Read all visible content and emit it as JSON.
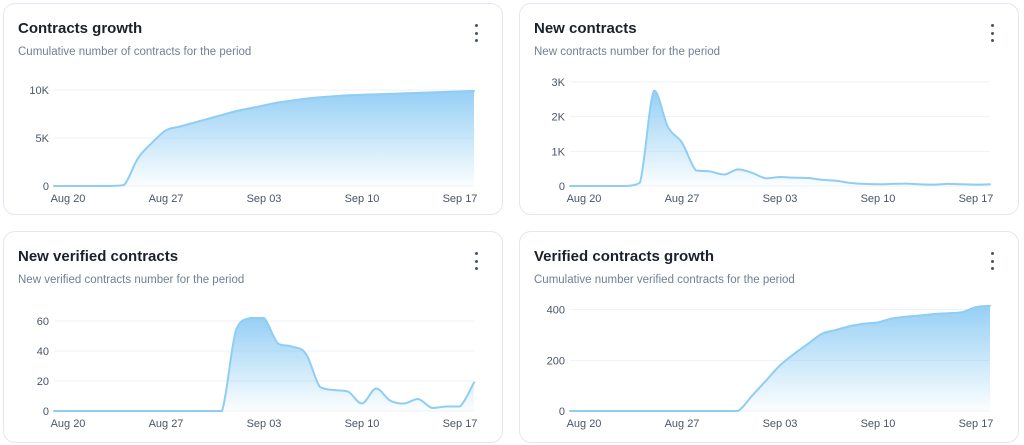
{
  "colors": {
    "line": "#90cdf4",
    "area_top": "#90cdf4",
    "grid": "#edf2f7"
  },
  "cards": [
    {
      "title": "Contracts growth",
      "subtitle": "Cumulative number of contracts for the period",
      "menu_icon": "more-vertical-icon",
      "chart_data": {
        "type": "area",
        "title": "Contracts growth",
        "xlabel": "",
        "ylabel": "",
        "x": [
          "2023-08-19",
          "2023-08-20",
          "2023-08-21",
          "2023-08-22",
          "2023-08-23",
          "2023-08-24",
          "2023-08-25",
          "2023-08-26",
          "2023-08-27",
          "2023-08-28",
          "2023-08-29",
          "2023-08-30",
          "2023-08-31",
          "2023-09-01",
          "2023-09-02",
          "2023-09-03",
          "2023-09-04",
          "2023-09-05",
          "2023-09-06",
          "2023-09-07",
          "2023-09-08",
          "2023-09-09",
          "2023-09-10",
          "2023-09-11",
          "2023-09-12",
          "2023-09-13",
          "2023-09-14",
          "2023-09-15",
          "2023-09-16",
          "2023-09-17",
          "2023-09-18"
        ],
        "values": [
          0,
          0,
          0,
          0,
          0,
          100,
          2900,
          4500,
          5800,
          6200,
          6600,
          7000,
          7400,
          7800,
          8100,
          8400,
          8700,
          8900,
          9100,
          9250,
          9350,
          9450,
          9500,
          9550,
          9600,
          9650,
          9700,
          9750,
          9800,
          9850,
          9900
        ],
        "ylim": [
          0,
          10000
        ],
        "y_ticks": [
          0,
          5000,
          10000
        ],
        "y_tick_labels": [
          "0",
          "5K",
          "10K"
        ],
        "x_ticks": [
          "2023-08-20",
          "2023-08-27",
          "2023-09-03",
          "2023-09-10",
          "2023-09-17"
        ],
        "x_tick_labels": [
          "Aug 20",
          "Aug 27",
          "Sep 03",
          "Sep 10",
          "Sep 17"
        ],
        "grid": true,
        "legend": "none"
      }
    },
    {
      "title": "New contracts",
      "subtitle": "New contracts number for the period",
      "menu_icon": "more-vertical-icon",
      "chart_data": {
        "type": "area",
        "title": "New contracts",
        "xlabel": "",
        "ylabel": "",
        "x": [
          "2023-08-19",
          "2023-08-20",
          "2023-08-21",
          "2023-08-22",
          "2023-08-23",
          "2023-08-24",
          "2023-08-25",
          "2023-08-26",
          "2023-08-27",
          "2023-08-28",
          "2023-08-29",
          "2023-08-30",
          "2023-08-31",
          "2023-09-01",
          "2023-09-02",
          "2023-09-03",
          "2023-09-04",
          "2023-09-05",
          "2023-09-06",
          "2023-09-07",
          "2023-09-08",
          "2023-09-09",
          "2023-09-10",
          "2023-09-11",
          "2023-09-12",
          "2023-09-13",
          "2023-09-14",
          "2023-09-15",
          "2023-09-16",
          "2023-09-17",
          "2023-09-18"
        ],
        "values": [
          0,
          0,
          0,
          0,
          0,
          100,
          2750,
          1700,
          1250,
          450,
          420,
          330,
          480,
          380,
          220,
          260,
          240,
          230,
          180,
          150,
          90,
          60,
          50,
          60,
          70,
          50,
          40,
          60,
          50,
          40,
          50
        ],
        "ylim": [
          0,
          3000
        ],
        "y_ticks": [
          0,
          1000,
          2000,
          3000
        ],
        "y_tick_labels": [
          "0",
          "1K",
          "2K",
          "3K"
        ],
        "x_ticks": [
          "2023-08-20",
          "2023-08-27",
          "2023-09-03",
          "2023-09-10",
          "2023-09-17"
        ],
        "x_tick_labels": [
          "Aug 20",
          "Aug 27",
          "Sep 03",
          "Sep 10",
          "Sep 17"
        ],
        "grid": true,
        "legend": "none"
      }
    },
    {
      "title": "New verified contracts",
      "subtitle": "New verified contracts number for the period",
      "menu_icon": "more-vertical-icon",
      "chart_data": {
        "type": "area",
        "title": "New verified contracts",
        "xlabel": "",
        "ylabel": "",
        "x": [
          "2023-08-19",
          "2023-08-20",
          "2023-08-21",
          "2023-08-22",
          "2023-08-23",
          "2023-08-24",
          "2023-08-25",
          "2023-08-26",
          "2023-08-27",
          "2023-08-28",
          "2023-08-29",
          "2023-08-30",
          "2023-08-31",
          "2023-09-01",
          "2023-09-02",
          "2023-09-03",
          "2023-09-04",
          "2023-09-05",
          "2023-09-06",
          "2023-09-07",
          "2023-09-08",
          "2023-09-09",
          "2023-09-10",
          "2023-09-11",
          "2023-09-12",
          "2023-09-13",
          "2023-09-14",
          "2023-09-15",
          "2023-09-16",
          "2023-09-17",
          "2023-09-18"
        ],
        "values": [
          0,
          0,
          0,
          0,
          0,
          0,
          0,
          0,
          0,
          0,
          0,
          0,
          0,
          54,
          62,
          62,
          45,
          43,
          38,
          16,
          14,
          13,
          5,
          15,
          7,
          5,
          8,
          2,
          3,
          3,
          19
        ],
        "ylim": [
          0,
          70
        ],
        "y_ticks": [
          0,
          20,
          40,
          60
        ],
        "y_tick_labels": [
          "0",
          "20",
          "40",
          "60"
        ],
        "x_ticks": [
          "2023-08-20",
          "2023-08-27",
          "2023-09-03",
          "2023-09-10",
          "2023-09-17"
        ],
        "x_tick_labels": [
          "Aug 20",
          "Aug 27",
          "Sep 03",
          "Sep 10",
          "Sep 17"
        ],
        "grid": true,
        "legend": "none"
      }
    },
    {
      "title": "Verified contracts growth",
      "subtitle": "Cumulative number verified contracts for the period",
      "menu_icon": "more-vertical-icon",
      "chart_data": {
        "type": "area",
        "title": "Verified contracts growth",
        "xlabel": "",
        "ylabel": "",
        "x": [
          "2023-08-19",
          "2023-08-20",
          "2023-08-21",
          "2023-08-22",
          "2023-08-23",
          "2023-08-24",
          "2023-08-25",
          "2023-08-26",
          "2023-08-27",
          "2023-08-28",
          "2023-08-29",
          "2023-08-30",
          "2023-08-31",
          "2023-09-01",
          "2023-09-02",
          "2023-09-03",
          "2023-09-04",
          "2023-09-05",
          "2023-09-06",
          "2023-09-07",
          "2023-09-08",
          "2023-09-09",
          "2023-09-10",
          "2023-09-11",
          "2023-09-12",
          "2023-09-13",
          "2023-09-14",
          "2023-09-15",
          "2023-09-16",
          "2023-09-17",
          "2023-09-18"
        ],
        "values": [
          0,
          0,
          0,
          0,
          0,
          0,
          0,
          0,
          0,
          0,
          0,
          0,
          0,
          60,
          120,
          180,
          225,
          265,
          305,
          320,
          335,
          345,
          350,
          365,
          372,
          377,
          383,
          386,
          390,
          410,
          415
        ],
        "ylim": [
          0,
          450
        ],
        "y_ticks": [
          0,
          200,
          400
        ],
        "y_tick_labels": [
          "0",
          "200",
          "400"
        ],
        "x_ticks": [
          "2023-08-20",
          "2023-08-27",
          "2023-09-03",
          "2023-09-10",
          "2023-09-17"
        ],
        "x_tick_labels": [
          "Aug 20",
          "Aug 27",
          "Sep 03",
          "Sep 10",
          "Sep 17"
        ],
        "grid": true,
        "legend": "none"
      }
    }
  ]
}
